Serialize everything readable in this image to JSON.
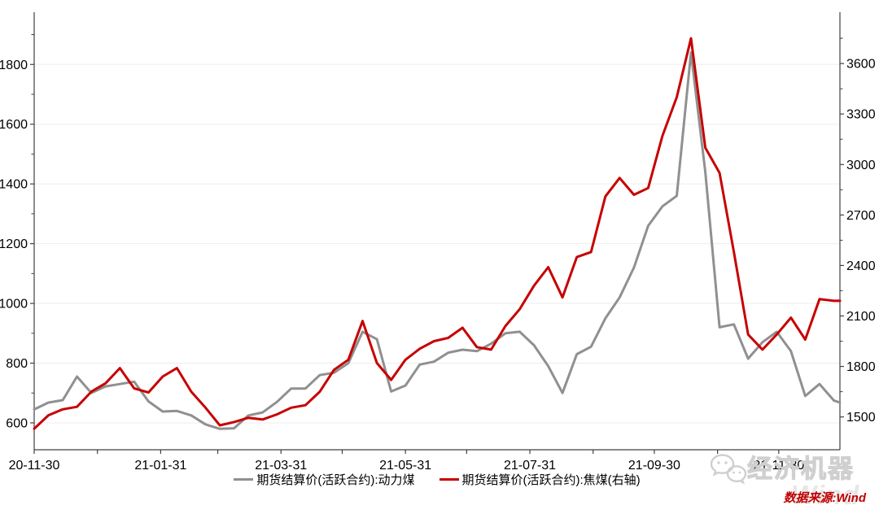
{
  "chart_data": {
    "type": "line",
    "title": "",
    "x_domain": [
      "2020-11-30",
      "2021-12-30"
    ],
    "x_dates": [
      "2020-11-30",
      "2020-12-07",
      "2020-12-14",
      "2020-12-21",
      "2020-12-28",
      "2021-01-04",
      "2021-01-11",
      "2021-01-18",
      "2021-01-25",
      "2021-02-01",
      "2021-02-08",
      "2021-02-15",
      "2021-02-22",
      "2021-03-01",
      "2021-03-08",
      "2021-03-15",
      "2021-03-22",
      "2021-03-29",
      "2021-04-05",
      "2021-04-12",
      "2021-04-19",
      "2021-04-26",
      "2021-05-03",
      "2021-05-10",
      "2021-05-17",
      "2021-05-24",
      "2021-05-31",
      "2021-06-07",
      "2021-06-14",
      "2021-06-21",
      "2021-06-28",
      "2021-07-05",
      "2021-07-12",
      "2021-07-19",
      "2021-07-26",
      "2021-08-02",
      "2021-08-09",
      "2021-08-16",
      "2021-08-23",
      "2021-08-30",
      "2021-09-06",
      "2021-09-13",
      "2021-09-20",
      "2021-09-27",
      "2021-10-04",
      "2021-10-11",
      "2021-10-18",
      "2021-10-25",
      "2021-11-01",
      "2021-11-08",
      "2021-11-15",
      "2021-11-22",
      "2021-11-29",
      "2021-12-06",
      "2021-12-13",
      "2021-12-20",
      "2021-12-27",
      "2021-12-30"
    ],
    "series": [
      {
        "name": "期货结算价(活跃合约):动力煤",
        "axis": "left",
        "color": "#909090",
        "values": [
          645,
          668,
          676,
          755,
          700,
          722,
          730,
          738,
          672,
          638,
          640,
          625,
          595,
          580,
          582,
          625,
          635,
          670,
          715,
          715,
          760,
          768,
          800,
          905,
          880,
          705,
          725,
          795,
          805,
          835,
          845,
          840,
          865,
          900,
          905,
          860,
          790,
          700,
          830,
          855,
          950,
          1020,
          1120,
          1260,
          1325,
          1360,
          1840,
          1440,
          920,
          930,
          815,
          870,
          905,
          840,
          690,
          730,
          675,
          668
        ]
      },
      {
        "name": "期货结算价(活跃合约):焦煤(右轴)",
        "axis": "right",
        "color": "#c70000",
        "values": [
          1430,
          1510,
          1545,
          1560,
          1650,
          1700,
          1790,
          1670,
          1645,
          1740,
          1790,
          1650,
          1555,
          1450,
          1470,
          1495,
          1485,
          1515,
          1555,
          1570,
          1650,
          1780,
          1840,
          2070,
          1820,
          1720,
          1840,
          1905,
          1950,
          1970,
          2030,
          1915,
          1900,
          2040,
          2140,
          2280,
          2390,
          2210,
          2450,
          2480,
          2810,
          2920,
          2820,
          2860,
          3170,
          3400,
          3750,
          3100,
          2950,
          2480,
          1990,
          1900,
          1990,
          2090,
          1960,
          2200,
          2190,
          2190
        ]
      }
    ],
    "left_axis": {
      "ticks": [
        600,
        800,
        1000,
        1200,
        1400,
        1600,
        1800
      ],
      "minor_step": 100,
      "ylim": [
        510,
        1975
      ]
    },
    "right_axis": {
      "ticks": [
        1500,
        1800,
        2100,
        2400,
        2700,
        3000,
        3300,
        3600
      ],
      "minor_step": 150,
      "ylim": [
        1305,
        3905
      ]
    },
    "x_axis": {
      "tick_dates": [
        "2020-11-30",
        "2020-12-31",
        "2021-01-31",
        "2021-02-28",
        "2021-03-31",
        "2021-04-30",
        "2021-05-31",
        "2021-06-30",
        "2021-07-31",
        "2021-08-31",
        "2021-09-30",
        "2021-10-31",
        "2021-11-30"
      ],
      "tick_labels": [
        "20-11-30",
        "",
        "21-01-31",
        "",
        "21-03-31",
        "",
        "21-05-31",
        "",
        "21-07-31",
        "",
        "21-09-30",
        "",
        "21-11-30"
      ]
    },
    "grid": "horizontal-on",
    "legend_position": "bottom-center",
    "colors": {
      "grid": "#ededed",
      "axis": "#404040",
      "tick_text": "#000000"
    }
  },
  "legend": {
    "items": [
      {
        "label": "期货结算价(活跃合约):动力煤",
        "color": "#909090"
      },
      {
        "label": "期货结算价(活跃合约):焦煤(右轴)",
        "color": "#c70000"
      }
    ]
  },
  "watermark": {
    "brand": "经济机器",
    "ghost_text": "Wind"
  },
  "source": {
    "text": "数据来源:Wind",
    "color": "#c00000"
  }
}
